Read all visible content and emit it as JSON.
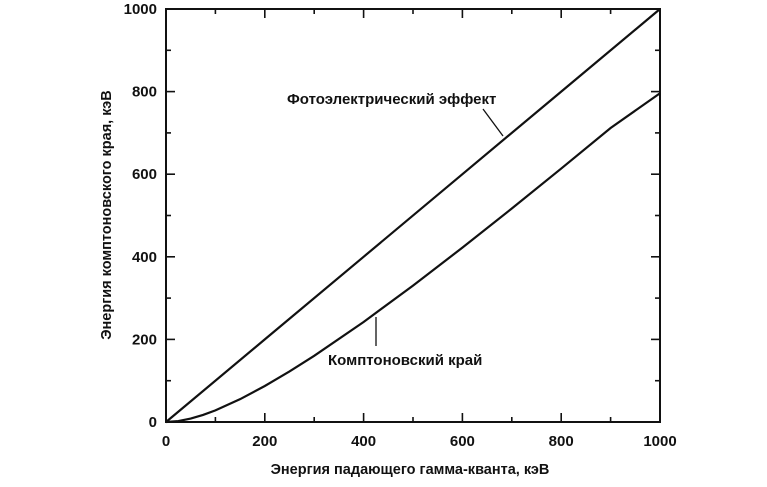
{
  "chart_data": {
    "type": "line",
    "xlabel": "Энергия падающего гамма-кванта, кэВ",
    "ylabel": "Энергия комптоновского края, кэВ",
    "xlim": [
      0,
      1000
    ],
    "ylim": [
      0,
      1000
    ],
    "xticks": [
      0,
      200,
      400,
      600,
      800,
      1000
    ],
    "yticks": [
      0,
      200,
      400,
      600,
      800,
      1000
    ],
    "xtick_labels": [
      "0",
      "200",
      "400",
      "600",
      "800",
      "1000"
    ],
    "ytick_labels": [
      "0",
      "200",
      "400",
      "600",
      "800",
      "1000"
    ],
    "grid": false,
    "series": [
      {
        "name": "Фотоэлектрический эффект",
        "x": [
          0,
          200,
          400,
          600,
          800,
          1000
        ],
        "y": [
          0,
          200,
          400,
          600,
          800,
          1000
        ]
      },
      {
        "name": "Комптоновский край",
        "x": [
          0,
          25,
          50,
          75,
          100,
          150,
          200,
          250,
          300,
          400,
          500,
          600,
          700,
          800,
          900,
          1000
        ],
        "y": [
          0,
          2.2,
          8.2,
          17.2,
          28.2,
          55.3,
          87.2,
          122.4,
          160.2,
          242.2,
          330.3,
          422.2,
          516.9,
          613.6,
          711.9,
          796
        ]
      }
    ]
  }
}
